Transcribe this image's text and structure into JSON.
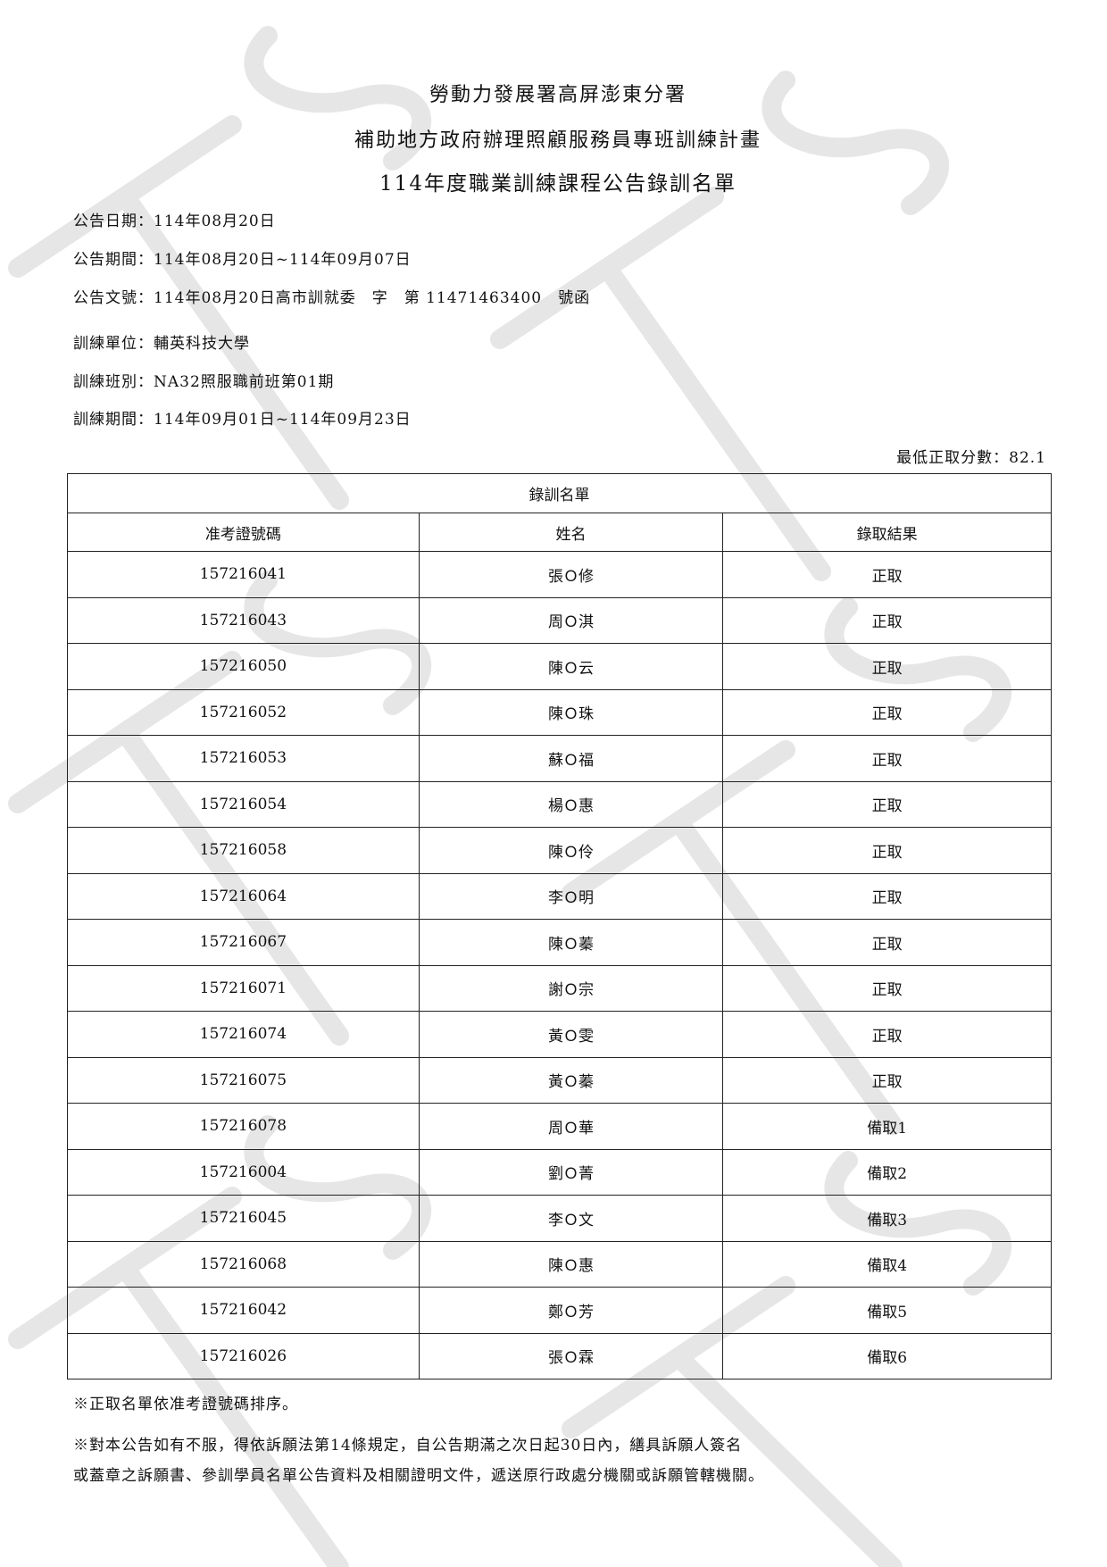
{
  "header": {
    "agency": "勞動力發展署高屏澎東分署",
    "program": "補助地方政府辦理照顧服務員專班訓練計畫",
    "list_title": "114年度職業訓練課程公告錄訓名單"
  },
  "info": [
    "公告日期：114年08月20日",
    "公告期間：114年08月20日~114年09月07日",
    "公告文號：114年08月20日高市訓就委　字　第 11471463400　號函",
    "訓練單位：輔英科技大學",
    "訓練班別：NA32照服職前班第01期",
    "訓練期間：114年09月01日~114年09月23日"
  ],
  "min_score": "最低正取分數：82.1",
  "table": {
    "caption": "錄訓名單",
    "columns": [
      "准考證號碼",
      "姓名",
      "錄取結果"
    ],
    "rows": [
      [
        "157216041",
        "張Ｏ修",
        "正取"
      ],
      [
        "157216043",
        "周Ｏ淇",
        "正取"
      ],
      [
        "157216050",
        "陳Ｏ云",
        "正取"
      ],
      [
        "157216052",
        "陳Ｏ珠",
        "正取"
      ],
      [
        "157216053",
        "蘇Ｏ福",
        "正取"
      ],
      [
        "157216054",
        "楊Ｏ惠",
        "正取"
      ],
      [
        "157216058",
        "陳Ｏ伶",
        "正取"
      ],
      [
        "157216064",
        "李Ｏ明",
        "正取"
      ],
      [
        "157216067",
        "陳Ｏ蓁",
        "正取"
      ],
      [
        "157216071",
        "謝Ｏ宗",
        "正取"
      ],
      [
        "157216074",
        "黃Ｏ雯",
        "正取"
      ],
      [
        "157216075",
        "黃Ｏ蓁",
        "正取"
      ],
      [
        "157216078",
        "周Ｏ華",
        "備取1"
      ],
      [
        "157216004",
        "劉Ｏ菁",
        "備取2"
      ],
      [
        "157216045",
        "李Ｏ文",
        "備取3"
      ],
      [
        "157216068",
        "陳Ｏ惠",
        "備取4"
      ],
      [
        "157216042",
        "鄭Ｏ芳",
        "備取5"
      ],
      [
        "157216026",
        "張Ｏ霖",
        "備取6"
      ]
    ]
  },
  "notes": [
    "※正取名單依准考證號碼排序。",
    "※對本公告如有不服，得依訴願法第14條規定，自公告期滿之次日起30日內，繕具訴願人簽名",
    "或蓋章之訴願書、參訓學員名單公告資料及相關證明文件，遞送原行政處分機關或訴願管轄機關。"
  ],
  "watermark": {
    "text": "TTS",
    "color": "#e3e3e3"
  }
}
